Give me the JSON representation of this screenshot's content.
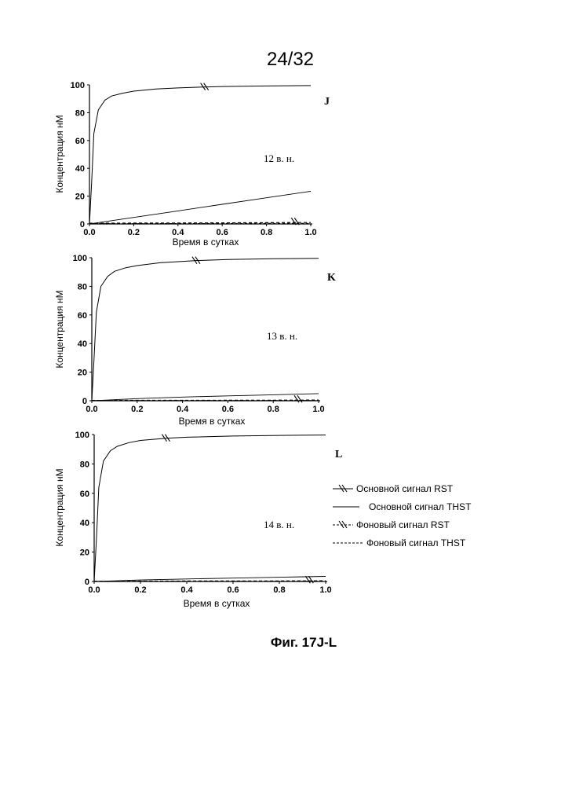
{
  "page_number": "24/32",
  "figure_caption": "Фиг. 17J-L",
  "legend": {
    "items": [
      {
        "label": "Основной сигнал RST",
        "style": "solid-slash"
      },
      {
        "label": "Основной сигнал THST",
        "style": "solid"
      },
      {
        "label": "Фоновый сигнал RST",
        "style": "dashed-slash"
      },
      {
        "label": "Фоновый сигнал THST",
        "style": "dashed"
      }
    ]
  },
  "chart_data": [
    {
      "type": "line",
      "panel": "J",
      "annotation": "12 в. н.",
      "xlabel": "Время в сутках",
      "ylabel": "Концентрация нМ",
      "xlim": [
        0.0,
        1.0
      ],
      "ylim": [
        0,
        100
      ],
      "xticks": [
        "0.0",
        "0.2",
        "0.4",
        "0.6",
        "0.8",
        "1.0"
      ],
      "yticks": [
        "0",
        "20",
        "40",
        "60",
        "80",
        "100"
      ],
      "series": [
        {
          "name": "Основной сигнал RST",
          "x": [
            0,
            0.01,
            0.02,
            0.04,
            0.07,
            0.1,
            0.15,
            0.2,
            0.3,
            0.4,
            0.52,
            0.6,
            0.8,
            1.0
          ],
          "y": [
            0,
            30,
            65,
            82,
            89,
            92,
            94,
            95.5,
            97,
            97.8,
            98.5,
            98.8,
            99.2,
            99.5
          ]
        },
        {
          "name": "Основной сигнал THST",
          "x": [
            0,
            0.2,
            0.4,
            0.6,
            0.8,
            1.0
          ],
          "y": [
            0,
            4.7,
            9.4,
            14.1,
            18.8,
            23.5
          ]
        },
        {
          "name": "Фоновый сигнал RST",
          "x": [
            0,
            0.2,
            0.4,
            0.6,
            0.8,
            0.93,
            1.0
          ],
          "y": [
            0.5,
            0.6,
            0.7,
            0.8,
            0.9,
            1.0,
            1.0
          ]
        },
        {
          "name": "Фоновый сигнал THST",
          "x": [
            0,
            0.2,
            0.4,
            0.6,
            0.8,
            1.0
          ],
          "y": [
            0.2,
            0.25,
            0.3,
            0.35,
            0.4,
            0.45
          ]
        }
      ]
    },
    {
      "type": "line",
      "panel": "K",
      "annotation": "13 в. н.",
      "xlabel": "Время в сутках",
      "ylabel": "Концентрация нМ",
      "xlim": [
        0.0,
        1.0
      ],
      "ylim": [
        0,
        100
      ],
      "xticks": [
        "0.0",
        "0.2",
        "0.4",
        "0.6",
        "0.8",
        "1.0"
      ],
      "yticks": [
        "0",
        "20",
        "40",
        "60",
        "80",
        "100"
      ],
      "series": [
        {
          "name": "Основной сигнал RST",
          "x": [
            0,
            0.01,
            0.02,
            0.04,
            0.07,
            0.1,
            0.15,
            0.2,
            0.3,
            0.46,
            0.6,
            0.8,
            1.0
          ],
          "y": [
            0,
            30,
            62,
            80,
            87,
            90.5,
            93,
            94.5,
            96.5,
            98,
            98.8,
            99.3,
            99.6
          ]
        },
        {
          "name": "Основной сигнал THST",
          "x": [
            0,
            0.2,
            0.4,
            0.6,
            0.8,
            1.0
          ],
          "y": [
            0,
            1.5,
            2.6,
            3.4,
            4.2,
            5.0
          ]
        },
        {
          "name": "Фоновый сигнал RST",
          "x": [
            0,
            0.2,
            0.4,
            0.6,
            0.8,
            0.91,
            1.0
          ],
          "y": [
            0.2,
            0.25,
            0.3,
            0.35,
            0.4,
            0.45,
            0.5
          ]
        },
        {
          "name": "Фоновый сигнал THST",
          "x": [
            0,
            0.2,
            0.4,
            0.6,
            0.8,
            1.0
          ],
          "y": [
            0.1,
            0.12,
            0.14,
            0.16,
            0.18,
            0.2
          ]
        }
      ]
    },
    {
      "type": "line",
      "panel": "L",
      "annotation": "14 в. н.",
      "xlabel": "Время в сутках",
      "ylabel": "Концентрация нМ",
      "xlim": [
        0.0,
        1.0
      ],
      "ylim": [
        0,
        100
      ],
      "xticks": [
        "0.0",
        "0.2",
        "0.4",
        "0.6",
        "0.8",
        "1.0"
      ],
      "yticks": [
        "0",
        "20",
        "40",
        "60",
        "80",
        "100"
      ],
      "series": [
        {
          "name": "Основной сигнал RST",
          "x": [
            0,
            0.01,
            0.02,
            0.04,
            0.07,
            0.1,
            0.15,
            0.2,
            0.31,
            0.4,
            0.6,
            0.8,
            1.0
          ],
          "y": [
            0,
            30,
            64,
            82,
            89,
            92,
            94.5,
            96,
            97.5,
            98.2,
            99,
            99.4,
            99.7
          ]
        },
        {
          "name": "Основной сигнал THST",
          "x": [
            0,
            0.2,
            0.4,
            0.6,
            0.8,
            1.0
          ],
          "y": [
            0,
            1.0,
            1.7,
            2.3,
            2.9,
            3.5
          ]
        },
        {
          "name": "Фоновый сигнал RST",
          "x": [
            0,
            0.2,
            0.4,
            0.6,
            0.8,
            0.93,
            1.0
          ],
          "y": [
            0.2,
            0.25,
            0.3,
            0.35,
            0.4,
            0.45,
            0.5
          ]
        },
        {
          "name": "Фоновый сигнал THST",
          "x": [
            0,
            0.2,
            0.4,
            0.6,
            0.8,
            1.0
          ],
          "y": [
            0.1,
            0.12,
            0.14,
            0.16,
            0.18,
            0.2
          ]
        }
      ]
    }
  ]
}
